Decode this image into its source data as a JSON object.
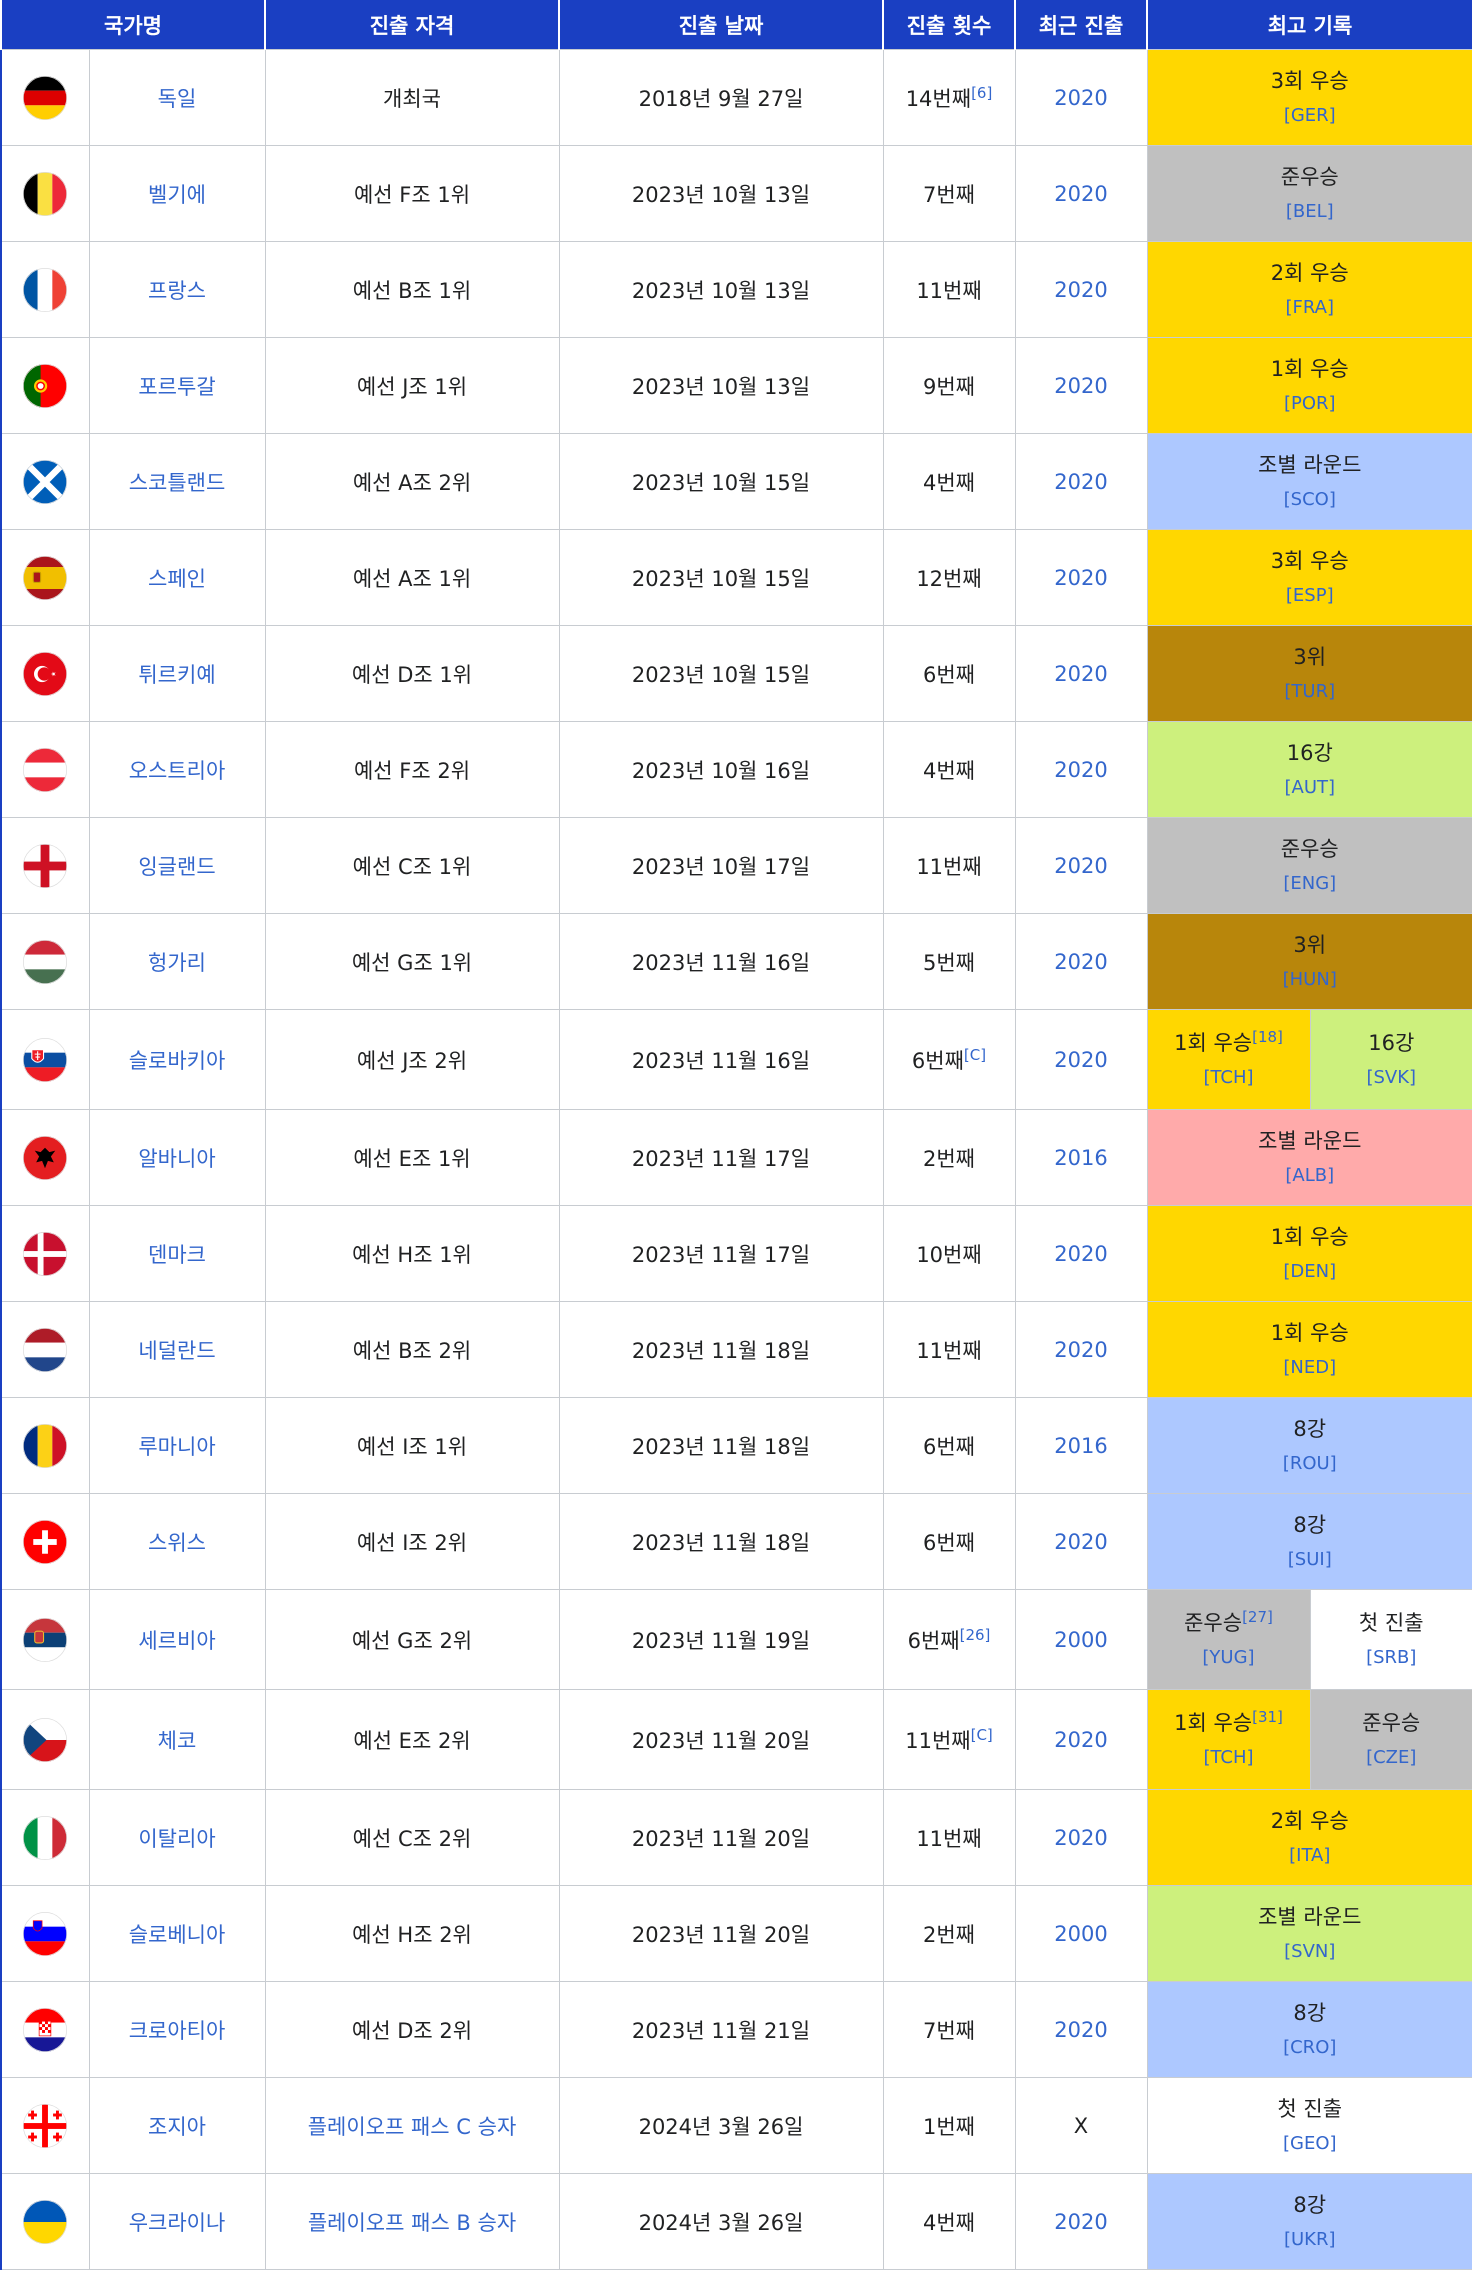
{
  "headers": {
    "country": "국가명",
    "qualification": "진출 자격",
    "date": "진출 날짜",
    "appearances": "진출 횟수",
    "last": "최근 진출",
    "best": "최고 기록"
  },
  "colors": {
    "header": "#1a3fc2",
    "link": "#3366cc",
    "gold": "#ffd700",
    "silver": "#c0c0c0",
    "bronze": "#b8860b",
    "blue": "#adc8ff",
    "green": "#cdf07d",
    "red": "#ffaaaa",
    "white": "#ffffff"
  },
  "rows": [
    {
      "flag": "germany-flag-icon",
      "name": "독일",
      "qual": "개최국",
      "qual_link": false,
      "date": "2018년 9월 27일",
      "count": "14번째",
      "note": "[6]",
      "last": "2020",
      "last_link": true,
      "best": [
        {
          "text": "3회 우승",
          "note": "",
          "code": "[GER]",
          "color": "gold"
        }
      ]
    },
    {
      "flag": "belgium-flag-icon",
      "name": "벨기에",
      "qual": "예선 F조 1위",
      "qual_link": false,
      "date": "2023년 10월 13일",
      "count": "7번째",
      "note": "",
      "last": "2020",
      "last_link": true,
      "best": [
        {
          "text": "준우승",
          "note": "",
          "code": "[BEL]",
          "color": "silver"
        }
      ]
    },
    {
      "flag": "france-flag-icon",
      "name": "프랑스",
      "qual": "예선 B조 1위",
      "qual_link": false,
      "date": "2023년 10월 13일",
      "count": "11번째",
      "note": "",
      "last": "2020",
      "last_link": true,
      "best": [
        {
          "text": "2회 우승",
          "note": "",
          "code": "[FRA]",
          "color": "gold"
        }
      ]
    },
    {
      "flag": "portugal-flag-icon",
      "name": "포르투갈",
      "qual": "예선 J조 1위",
      "qual_link": false,
      "date": "2023년 10월 13일",
      "count": "9번째",
      "note": "",
      "last": "2020",
      "last_link": true,
      "best": [
        {
          "text": "1회 우승",
          "note": "",
          "code": "[POR]",
          "color": "gold"
        }
      ]
    },
    {
      "flag": "scotland-flag-icon",
      "name": "스코틀랜드",
      "qual": "예선 A조 2위",
      "qual_link": false,
      "date": "2023년 10월 15일",
      "count": "4번째",
      "note": "",
      "last": "2020",
      "last_link": true,
      "best": [
        {
          "text": "조별 라운드",
          "note": "",
          "code": "[SCO]",
          "color": "blue"
        }
      ]
    },
    {
      "flag": "spain-flag-icon",
      "name": "스페인",
      "qual": "예선 A조 1위",
      "qual_link": false,
      "date": "2023년 10월 15일",
      "count": "12번째",
      "note": "",
      "last": "2020",
      "last_link": true,
      "best": [
        {
          "text": "3회 우승",
          "note": "",
          "code": "[ESP]",
          "color": "gold"
        }
      ]
    },
    {
      "flag": "turkey-flag-icon",
      "name": "튀르키예",
      "qual": "예선 D조 1위",
      "qual_link": false,
      "date": "2023년 10월 15일",
      "count": "6번째",
      "note": "",
      "last": "2020",
      "last_link": true,
      "best": [
        {
          "text": "3위",
          "note": "",
          "code": "[TUR]",
          "color": "bronze"
        }
      ]
    },
    {
      "flag": "austria-flag-icon",
      "name": "오스트리아",
      "qual": "예선 F조 2위",
      "qual_link": false,
      "date": "2023년 10월 16일",
      "count": "4번째",
      "note": "",
      "last": "2020",
      "last_link": true,
      "best": [
        {
          "text": "16강",
          "note": "",
          "code": "[AUT]",
          "color": "green"
        }
      ]
    },
    {
      "flag": "england-flag-icon",
      "name": "잉글랜드",
      "qual": "예선 C조 1위",
      "qual_link": false,
      "date": "2023년 10월 17일",
      "count": "11번째",
      "note": "",
      "last": "2020",
      "last_link": true,
      "best": [
        {
          "text": "준우승",
          "note": "",
          "code": "[ENG]",
          "color": "silver"
        }
      ]
    },
    {
      "flag": "hungary-flag-icon",
      "name": "헝가리",
      "qual": "예선 G조 1위",
      "qual_link": false,
      "date": "2023년 11월 16일",
      "count": "5번째",
      "note": "",
      "last": "2020",
      "last_link": true,
      "best": [
        {
          "text": "3위",
          "note": "",
          "code": "[HUN]",
          "color": "bronze"
        }
      ]
    },
    {
      "flag": "slovakia-flag-icon",
      "name": "슬로바키아",
      "qual": "예선 J조 2위",
      "qual_link": false,
      "date": "2023년 11월 16일",
      "count": "6번째",
      "note": "[C]",
      "last": "2020",
      "last_link": true,
      "best": [
        {
          "text": "1회 우승",
          "note": "[18]",
          "code": "[TCH]",
          "color": "gold"
        },
        {
          "text": "16강",
          "note": "",
          "code": "[SVK]",
          "color": "green"
        }
      ]
    },
    {
      "flag": "albania-flag-icon",
      "name": "알바니아",
      "qual": "예선 E조 1위",
      "qual_link": false,
      "date": "2023년 11월 17일",
      "count": "2번째",
      "note": "",
      "last": "2016",
      "last_link": true,
      "best": [
        {
          "text": "조별 라운드",
          "note": "",
          "code": "[ALB]",
          "color": "red"
        }
      ]
    },
    {
      "flag": "denmark-flag-icon",
      "name": "덴마크",
      "qual": "예선 H조 1위",
      "qual_link": false,
      "date": "2023년 11월 17일",
      "count": "10번째",
      "note": "",
      "last": "2020",
      "last_link": true,
      "best": [
        {
          "text": "1회 우승",
          "note": "",
          "code": "[DEN]",
          "color": "gold"
        }
      ]
    },
    {
      "flag": "netherlands-flag-icon",
      "name": "네덜란드",
      "qual": "예선 B조 2위",
      "qual_link": false,
      "date": "2023년 11월 18일",
      "count": "11번째",
      "note": "",
      "last": "2020",
      "last_link": true,
      "best": [
        {
          "text": "1회 우승",
          "note": "",
          "code": "[NED]",
          "color": "gold"
        }
      ]
    },
    {
      "flag": "romania-flag-icon",
      "name": "루마니아",
      "qual": "예선 I조 1위",
      "qual_link": false,
      "date": "2023년 11월 18일",
      "count": "6번째",
      "note": "",
      "last": "2016",
      "last_link": true,
      "best": [
        {
          "text": "8강",
          "note": "",
          "code": "[ROU]",
          "color": "blue"
        }
      ]
    },
    {
      "flag": "switzerland-flag-icon",
      "name": "스위스",
      "qual": "예선 I조 2위",
      "qual_link": false,
      "date": "2023년 11월 18일",
      "count": "6번째",
      "note": "",
      "last": "2020",
      "last_link": true,
      "best": [
        {
          "text": "8강",
          "note": "",
          "code": "[SUI]",
          "color": "blue"
        }
      ]
    },
    {
      "flag": "serbia-flag-icon",
      "name": "세르비아",
      "qual": "예선 G조 2위",
      "qual_link": false,
      "date": "2023년 11월 19일",
      "count": "6번째",
      "note": "[26]",
      "last": "2000",
      "last_link": true,
      "best": [
        {
          "text": "준우승",
          "note": "[27]",
          "code": "[YUG]",
          "color": "silver"
        },
        {
          "text": "첫 진출",
          "note": "",
          "code": "[SRB]",
          "color": "white"
        }
      ]
    },
    {
      "flag": "czechia-flag-icon",
      "name": "체코",
      "qual": "예선 E조 2위",
      "qual_link": false,
      "date": "2023년 11월 20일",
      "count": "11번째",
      "note": "[C]",
      "last": "2020",
      "last_link": true,
      "best": [
        {
          "text": "1회 우승",
          "note": "[31]",
          "code": "[TCH]",
          "color": "gold"
        },
        {
          "text": "준우승",
          "note": "",
          "code": "[CZE]",
          "color": "silver"
        }
      ]
    },
    {
      "flag": "italy-flag-icon",
      "name": "이탈리아",
      "qual": "예선 C조 2위",
      "qual_link": false,
      "date": "2023년 11월 20일",
      "count": "11번째",
      "note": "",
      "last": "2020",
      "last_link": true,
      "best": [
        {
          "text": "2회 우승",
          "note": "",
          "code": "[ITA]",
          "color": "gold"
        }
      ]
    },
    {
      "flag": "slovenia-flag-icon",
      "name": "슬로베니아",
      "qual": "예선 H조 2위",
      "qual_link": false,
      "date": "2023년 11월 20일",
      "count": "2번째",
      "note": "",
      "last": "2000",
      "last_link": true,
      "best": [
        {
          "text": "조별 라운드",
          "note": "",
          "code": "[SVN]",
          "color": "green"
        }
      ]
    },
    {
      "flag": "croatia-flag-icon",
      "name": "크로아티아",
      "qual": "예선 D조 2위",
      "qual_link": false,
      "date": "2023년 11월 21일",
      "count": "7번째",
      "note": "",
      "last": "2020",
      "last_link": true,
      "best": [
        {
          "text": "8강",
          "note": "",
          "code": "[CRO]",
          "color": "blue"
        }
      ]
    },
    {
      "flag": "georgia-flag-icon",
      "name": "조지아",
      "qual": "플레이오프 패스 C 승자",
      "qual_link": true,
      "date": "2024년 3월 26일",
      "count": "1번째",
      "note": "",
      "last": "X",
      "last_link": false,
      "best": [
        {
          "text": "첫 진출",
          "note": "",
          "code": "[GEO]",
          "color": "white"
        }
      ]
    },
    {
      "flag": "ukraine-flag-icon",
      "name": "우크라이나",
      "qual": "플레이오프 패스 B 승자",
      "qual_link": true,
      "date": "2024년 3월 26일",
      "count": "4번째",
      "note": "",
      "last": "2020",
      "last_link": true,
      "best": [
        {
          "text": "8강",
          "note": "",
          "code": "[UKR]",
          "color": "blue"
        }
      ]
    }
  ]
}
